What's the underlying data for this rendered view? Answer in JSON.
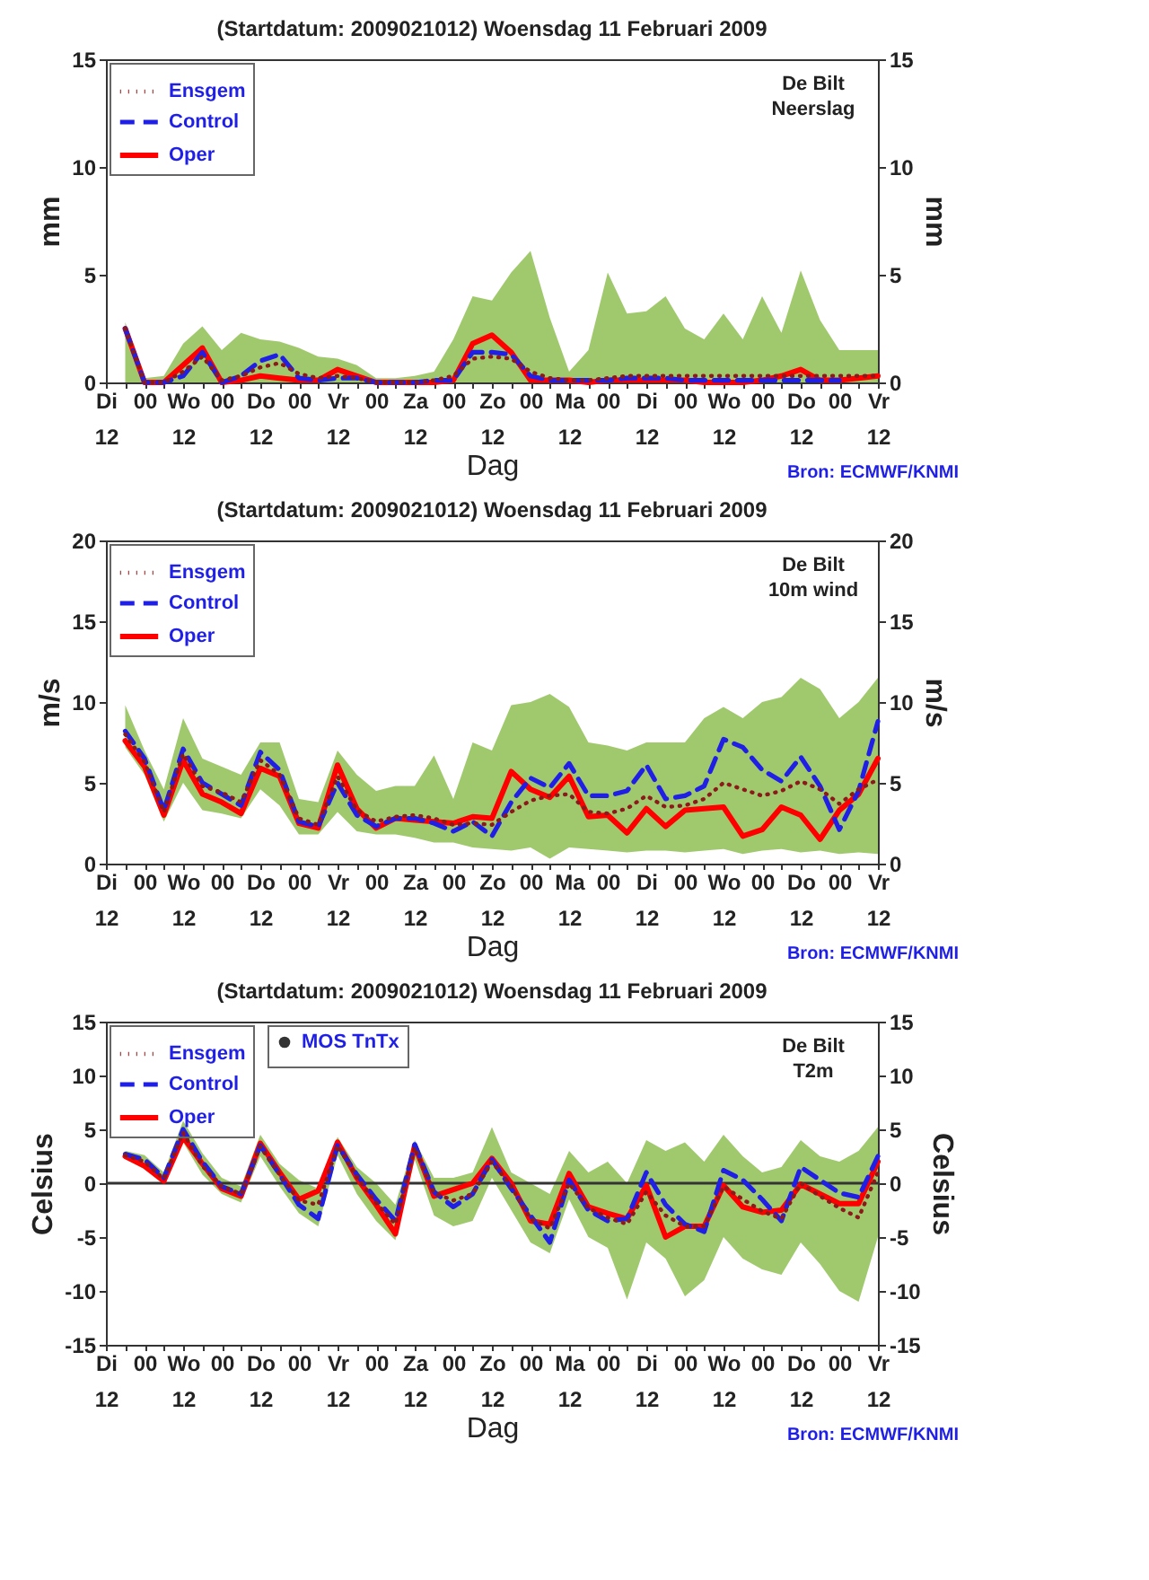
{
  "chart_data": [
    {
      "type": "line",
      "title": "(Startdatum: 2009021012)   Woensdag  11 Februari  2009",
      "xlabel": "Dag",
      "ylabel": "mm",
      "y2label": "mm",
      "annotations": [
        "De Bilt",
        "Neerslag",
        "Bron: ECMWF/KNMI"
      ],
      "categories": [
        "Di\n12",
        null,
        "00",
        null,
        "Wo\n12",
        null,
        "00",
        null,
        "Do\n12",
        null,
        "00",
        null,
        "Vr\n12",
        null,
        "00",
        null,
        "Za\n12",
        null,
        "00",
        null,
        "Zo\n12",
        null,
        "00",
        null,
        "Ma\n12",
        null,
        "00",
        null,
        "Di\n12",
        null,
        "00",
        null,
        "Wo\n12",
        null,
        "00",
        null,
        "Do\n12",
        null,
        "00",
        null,
        "Vr\n12"
      ],
      "ylim": [
        0,
        15
      ],
      "yticks": [
        0,
        5,
        10,
        15
      ],
      "y2lim": [
        0,
        15
      ],
      "y2ticks": [
        0,
        5,
        10,
        15
      ],
      "legend": "top left",
      "grid": false,
      "series": [
        {
          "name": "Ensgem",
          "color": "#8b1a1a",
          "line_style": "dotted",
          "values": [
            null,
            2.5,
            0,
            0,
            0.5,
            1.2,
            0.1,
            0.3,
            0.7,
            0.9,
            0.4,
            0.2,
            0.3,
            0.2,
            0,
            0,
            0,
            0.1,
            0.3,
            1.1,
            1.2,
            1.1,
            0.5,
            0.2,
            0.1,
            0.1,
            0.2,
            0.3,
            0.3,
            0.3,
            0.3,
            0.3,
            0.3,
            0.3,
            0.3,
            0.3,
            0.3,
            0.3,
            0.3,
            0.3,
            0.3
          ],
          "lower": [
            null,
            0,
            0,
            0,
            0,
            0,
            0,
            0,
            0,
            0,
            0,
            0,
            0,
            0,
            0,
            0,
            0,
            0,
            0,
            0,
            0,
            0,
            0,
            0,
            0,
            0,
            0,
            0,
            0,
            0,
            0,
            0,
            0,
            0,
            0,
            0,
            0,
            0,
            0,
            0,
            0
          ],
          "upper": [
            null,
            2.8,
            0.2,
            0.3,
            1.8,
            2.6,
            1.5,
            2.3,
            2.0,
            1.9,
            1.6,
            1.2,
            1.1,
            0.8,
            0.2,
            0.2,
            0.3,
            0.5,
            2.0,
            4.0,
            3.8,
            5.1,
            6.1,
            3.0,
            0.5,
            1.5,
            5.1,
            3.2,
            3.3,
            4.0,
            2.5,
            2.0,
            3.2,
            2.0,
            4.0,
            2.3,
            5.2,
            2.9,
            1.5,
            1.5,
            1.5
          ]
        },
        {
          "name": "Control",
          "color": "#1f1fe6",
          "line_style": "dashed",
          "values": [
            null,
            2.5,
            0,
            0,
            0.3,
            1.4,
            0,
            0.3,
            1.0,
            1.3,
            0.2,
            0.1,
            0.2,
            0.2,
            0,
            0,
            0,
            0.1,
            0.1,
            1.4,
            1.4,
            1.3,
            0.3,
            0.1,
            0.1,
            0.1,
            0.1,
            0.2,
            0.2,
            0.2,
            0.1,
            0.1,
            0.1,
            0.1,
            0.1,
            0.1,
            0.1,
            0.1,
            0.1,
            null,
            null
          ]
        },
        {
          "name": "Oper",
          "color": "#ff0000",
          "line_style": "solid",
          "values": [
            null,
            2.5,
            0,
            0,
            0.8,
            1.6,
            0,
            0.1,
            0.3,
            0.2,
            0.1,
            0.1,
            0.6,
            0.3,
            0,
            0,
            0,
            0,
            0.1,
            1.8,
            2.2,
            1.4,
            0.1,
            0.1,
            0.1,
            0,
            0.1,
            0.1,
            0.1,
            0.1,
            0.1,
            0,
            0,
            0,
            0.1,
            0.3,
            0.6,
            0.1,
            0.1,
            0.2,
            0.3
          ]
        }
      ]
    },
    {
      "type": "line",
      "title": "(Startdatum: 2009021012)   Woensdag  11 Februari  2009",
      "xlabel": "Dag",
      "ylabel": "m/s",
      "y2label": "m/s",
      "annotations": [
        "De Bilt",
        "10m wind",
        "Bron: ECMWF/KNMI"
      ],
      "categories": [
        "Di\n12",
        null,
        "00",
        null,
        "Wo\n12",
        null,
        "00",
        null,
        "Do\n12",
        null,
        "00",
        null,
        "Vr\n12",
        null,
        "00",
        null,
        "Za\n12",
        null,
        "00",
        null,
        "Zo\n12",
        null,
        "00",
        null,
        "Ma\n12",
        null,
        "00",
        null,
        "Di\n12",
        null,
        "00",
        null,
        "Wo\n12",
        null,
        "00",
        null,
        "Do\n12",
        null,
        "00",
        null,
        "Vr\n12"
      ],
      "ylim": [
        0,
        20
      ],
      "yticks": [
        0,
        5,
        10,
        15,
        20
      ],
      "y2lim": [
        0,
        20
      ],
      "y2ticks": [
        0,
        5,
        10,
        15,
        20
      ],
      "legend": "top left",
      "grid": false,
      "series": [
        {
          "name": "Ensgem",
          "color": "#8b1a1a",
          "line_style": "dotted",
          "values": [
            null,
            8.0,
            6.3,
            3.2,
            6.8,
            4.8,
            4.4,
            3.8,
            6.4,
            5.5,
            2.8,
            2.4,
            5.4,
            3.3,
            2.6,
            2.9,
            3.0,
            2.8,
            2.4,
            2.5,
            2.4,
            3.2,
            3.9,
            4.2,
            4.3,
            3.2,
            3.1,
            3.4,
            4.2,
            3.5,
            3.6,
            4.0,
            5.0,
            4.6,
            4.2,
            4.5,
            5.1,
            4.6,
            3.7,
            4.6,
            5.2
          ],
          "lower": [
            null,
            7.2,
            5.5,
            2.6,
            5.0,
            3.3,
            3.1,
            2.8,
            4.6,
            3.6,
            1.8,
            1.8,
            3.2,
            2.0,
            1.8,
            1.8,
            1.6,
            1.3,
            1.3,
            1.0,
            0.9,
            0.8,
            1.0,
            0.3,
            1.0,
            0.9,
            0.8,
            0.7,
            0.8,
            0.8,
            0.7,
            0.8,
            0.9,
            0.6,
            0.8,
            0.9,
            0.7,
            0.8,
            0.6,
            0.7,
            0.6
          ],
          "upper": [
            null,
            9.8,
            7.0,
            4.6,
            9.0,
            6.5,
            6.0,
            5.5,
            7.5,
            7.5,
            4.0,
            3.8,
            7.0,
            5.5,
            4.5,
            4.8,
            4.8,
            6.7,
            4.0,
            7.5,
            7.0,
            9.8,
            10.0,
            10.5,
            9.7,
            7.5,
            7.3,
            7.0,
            7.5,
            7.5,
            7.5,
            9.0,
            9.7,
            9.0,
            10.0,
            10.3,
            11.5,
            10.8,
            9.0,
            10.0,
            11.5
          ]
        },
        {
          "name": "Control",
          "color": "#1f1fe6",
          "line_style": "dashed",
          "values": [
            null,
            8.2,
            6.5,
            3.3,
            7.1,
            5.0,
            4.3,
            3.6,
            6.9,
            5.8,
            2.6,
            2.3,
            5.0,
            3.0,
            2.3,
            2.8,
            2.8,
            2.5,
            2.0,
            2.6,
            1.7,
            3.8,
            5.3,
            4.7,
            6.2,
            4.2,
            4.2,
            4.5,
            6.1,
            4.0,
            4.2,
            4.8,
            7.7,
            7.2,
            5.8,
            5.1,
            6.6,
            4.8,
            2.1,
            4.5,
            8.8
          ]
        },
        {
          "name": "Oper",
          "color": "#ff0000",
          "line_style": "solid",
          "values": [
            null,
            7.6,
            6.0,
            3.0,
            6.4,
            4.3,
            3.8,
            3.1,
            5.9,
            5.4,
            2.5,
            2.2,
            6.1,
            3.4,
            2.2,
            2.8,
            2.7,
            2.6,
            2.5,
            2.9,
            2.8,
            5.7,
            4.6,
            4.1,
            5.4,
            2.9,
            3.0,
            1.9,
            3.4,
            2.3,
            3.3,
            3.4,
            3.5,
            1.7,
            2.1,
            3.5,
            3.0,
            1.5,
            3.3,
            4.3,
            6.5
          ]
        }
      ]
    },
    {
      "type": "line",
      "title": "(Startdatum: 2009021012)   Woensdag  11 Februari  2009",
      "xlabel": "Dag",
      "ylabel": "Celsius",
      "y2label": "Celsius",
      "annotations": [
        "De Bilt",
        "T2m",
        "Bron: ECMWF/KNMI"
      ],
      "categories": [
        "Di\n12",
        null,
        "00",
        null,
        "Wo\n12",
        null,
        "00",
        null,
        "Do\n12",
        null,
        "00",
        null,
        "Vr\n12",
        null,
        "00",
        null,
        "Za\n12",
        null,
        "00",
        null,
        "Zo\n12",
        null,
        "00",
        null,
        "Ma\n12",
        null,
        "00",
        null,
        "Di\n12",
        null,
        "00",
        null,
        "Wo\n12",
        null,
        "00",
        null,
        "Do\n12",
        null,
        "00",
        null,
        "Vr\n12"
      ],
      "ylim": [
        -15,
        15
      ],
      "yticks": [
        -15,
        -10,
        -5,
        0,
        5,
        10,
        15
      ],
      "y2lim": [
        -15,
        15
      ],
      "y2ticks": [
        -15,
        -10,
        -5,
        0,
        5,
        10,
        15
      ],
      "legend": "top left",
      "grid": false,
      "ref_lines": [
        {
          "axis": "y",
          "value": 0,
          "color": "#333333"
        }
      ],
      "series": [
        {
          "name": "Ensgem",
          "color": "#8b1a1a",
          "line_style": "dotted",
          "values": [
            null,
            2.6,
            2.0,
            0.4,
            4.7,
            1.6,
            -0.3,
            -1.0,
            3.4,
            0.8,
            -1.6,
            -2.0,
            3.5,
            0.6,
            -1.8,
            -3.8,
            3.3,
            -0.9,
            -1.6,
            -1.0,
            2.0,
            -0.3,
            -3.3,
            -4.2,
            0.0,
            -2.3,
            -3.2,
            -3.8,
            -0.8,
            -3.0,
            -4.0,
            -4.0,
            -0.3,
            -1.5,
            -2.6,
            -3.3,
            0.0,
            -1.2,
            -2.3,
            -3.2,
            1.0
          ],
          "lower": [
            null,
            2.3,
            1.3,
            0.0,
            3.8,
            0.8,
            -1.0,
            -1.8,
            2.5,
            -0.3,
            -2.8,
            -4.0,
            2.6,
            -1.0,
            -3.5,
            -5.3,
            2.2,
            -3.0,
            -4.0,
            -3.5,
            0.5,
            -2.5,
            -5.5,
            -6.5,
            -1.5,
            -5.0,
            -6.0,
            -10.8,
            -5.5,
            -7.0,
            -10.5,
            -9.0,
            -5.0,
            -7.0,
            -8.0,
            -8.5,
            -5.5,
            -7.5,
            -10.0,
            -11.0,
            -5.0
          ],
          "upper": [
            null,
            3.0,
            2.6,
            1.0,
            5.8,
            2.8,
            0.5,
            -0.3,
            4.5,
            1.8,
            0.3,
            -0.5,
            4.3,
            1.5,
            0.0,
            -2.0,
            4.0,
            0.5,
            0.5,
            1.0,
            5.2,
            1.0,
            0.0,
            -1.0,
            3.0,
            1.0,
            2.0,
            0.0,
            4.0,
            3.0,
            3.8,
            2.0,
            4.5,
            2.5,
            1.0,
            1.5,
            4.0,
            2.5,
            2.0,
            3.0,
            5.2
          ]
        },
        {
          "name": "Control",
          "color": "#1f1fe6",
          "line_style": "dashed",
          "values": [
            null,
            2.7,
            2.2,
            0.5,
            5.0,
            2.0,
            -0.3,
            -1.0,
            3.5,
            0.8,
            -2.0,
            -3.3,
            3.5,
            0.8,
            -1.5,
            -3.5,
            3.6,
            -0.8,
            -2.2,
            -1.0,
            2.2,
            -0.5,
            -3.0,
            -5.5,
            0.3,
            -2.5,
            -3.5,
            -3.3,
            1.0,
            -2.0,
            -3.8,
            -4.5,
            1.2,
            0.3,
            -1.5,
            -3.5,
            1.5,
            0.3,
            -0.9,
            -1.3,
            2.5
          ]
        },
        {
          "name": "Oper",
          "color": "#ff0000",
          "line_style": "solid",
          "values": [
            null,
            2.5,
            1.6,
            0.2,
            4.3,
            1.8,
            -0.5,
            -1.2,
            3.7,
            1.0,
            -1.5,
            -0.7,
            3.8,
            0.5,
            -2.0,
            -4.7,
            3.5,
            -1.2,
            -0.6,
            0.0,
            2.3,
            0.0,
            -3.5,
            -3.8,
            0.9,
            -2.2,
            -2.8,
            -3.3,
            -0.2,
            -5.0,
            -4.0,
            -4.0,
            -0.2,
            -2.2,
            -2.7,
            -2.5,
            -0.1,
            -1.0,
            -1.9,
            -1.9,
            2.0
          ]
        },
        {
          "name": "MOS TnTx",
          "type": "scatter",
          "color": "#333333",
          "marker": "circle",
          "values": [
            null,
            null,
            null,
            null,
            null,
            null,
            null,
            null,
            null,
            null,
            null,
            null,
            null,
            null,
            null,
            null,
            null,
            null,
            null,
            null,
            null,
            null,
            null,
            null,
            null,
            null,
            null,
            null,
            null,
            null,
            null,
            null,
            null,
            null,
            null,
            null,
            null,
            null,
            null,
            null,
            null
          ]
        }
      ]
    }
  ]
}
